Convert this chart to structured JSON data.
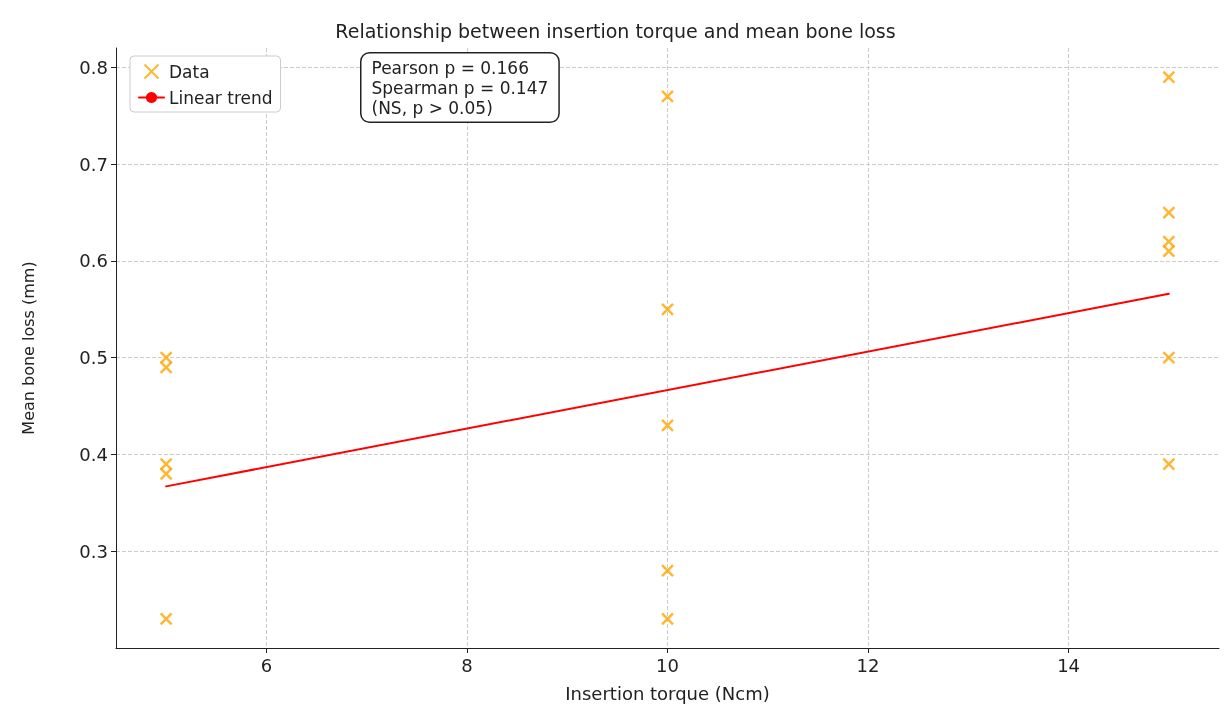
{
  "chart_data": {
    "type": "scatter",
    "title": "Relationship between insertion torque and mean bone loss",
    "xlabel": "Insertion torque (Ncm)",
    "ylabel": "Mean bone loss (mm)",
    "series": [
      {
        "name": "Data",
        "type": "scatter",
        "color": "#ffa500",
        "marker": "cross",
        "x": [
          5,
          5,
          5,
          5,
          5,
          10,
          10,
          10,
          10,
          10,
          15,
          15,
          15,
          15,
          15,
          15
        ],
        "values": [
          0.5,
          0.49,
          0.39,
          0.38,
          0.23,
          0.77,
          0.55,
          0.43,
          0.28,
          0.23,
          0.79,
          0.65,
          0.62,
          0.61,
          0.5,
          0.39
        ]
      },
      {
        "name": "Linear trend",
        "type": "line",
        "color": "#ff0000",
        "marker": "none",
        "line_style": "solid",
        "x": [
          5,
          15
        ],
        "values": [
          0.367,
          0.566
        ]
      }
    ],
    "annotations": [
      "Pearson p = 0.166\nSpearman p = 0.147\n(NS, p > 0.05)"
    ],
    "xlim": [
      4.5,
      15.5
    ],
    "xticks": [
      6,
      8,
      10,
      12,
      14
    ],
    "ylim": [
      0.2,
      0.82
    ],
    "yticks": [
      0.3,
      0.4,
      0.5,
      0.6,
      0.7,
      0.8
    ],
    "grid": true,
    "legend": "top left"
  }
}
